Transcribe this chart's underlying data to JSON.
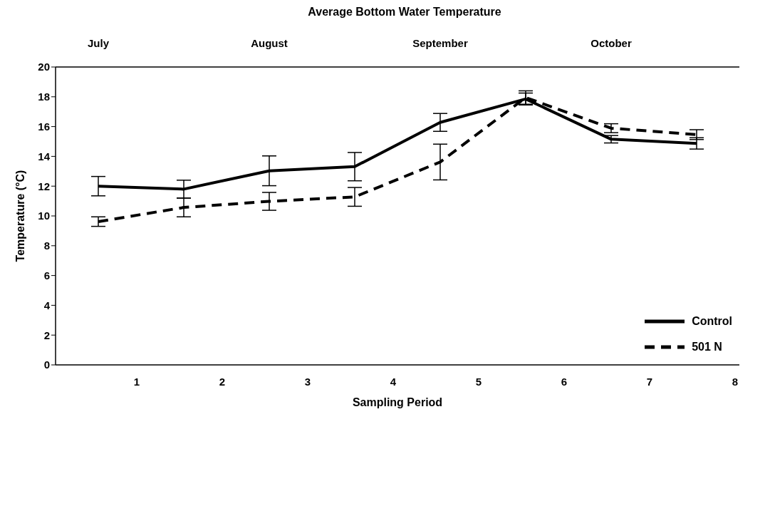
{
  "chart_data": {
    "type": "line",
    "title": "Average Bottom Water Temperature",
    "xlabel": "Sampling Period",
    "ylabel": "Temperature (°C)",
    "x": [
      0.55,
      1.55,
      2.55,
      3.55,
      4.55,
      5.55,
      6.55,
      7.55
    ],
    "xlim": [
      0.05,
      8.05
    ],
    "xticks": [
      1,
      2,
      3,
      4,
      5,
      6,
      7,
      8
    ],
    "annotations": [
      "July",
      "August",
      "September",
      "October"
    ],
    "ylim": [
      0,
      20
    ],
    "yticks": [
      0,
      2,
      4,
      6,
      8,
      10,
      12,
      14,
      16,
      18,
      20
    ],
    "legend": "bottom right",
    "series": [
      {
        "name": "Control",
        "color": "#000000",
        "line_style": "solid",
        "values": [
          12.0,
          11.8,
          13.03,
          13.31,
          16.28,
          17.85,
          15.15,
          14.87
        ],
        "errors": [
          0.65,
          0.6,
          1.0,
          0.95,
          0.6,
          0.4,
          0.25,
          0.38
        ]
      },
      {
        "name": "501 N",
        "color": "#000000",
        "line_style": "dashed",
        "values": [
          9.62,
          10.57,
          10.98,
          11.28,
          13.62,
          17.95,
          15.89,
          15.46
        ],
        "errors": [
          0.32,
          0.63,
          0.6,
          0.63,
          1.2,
          0.45,
          0.3,
          0.33
        ]
      }
    ]
  }
}
